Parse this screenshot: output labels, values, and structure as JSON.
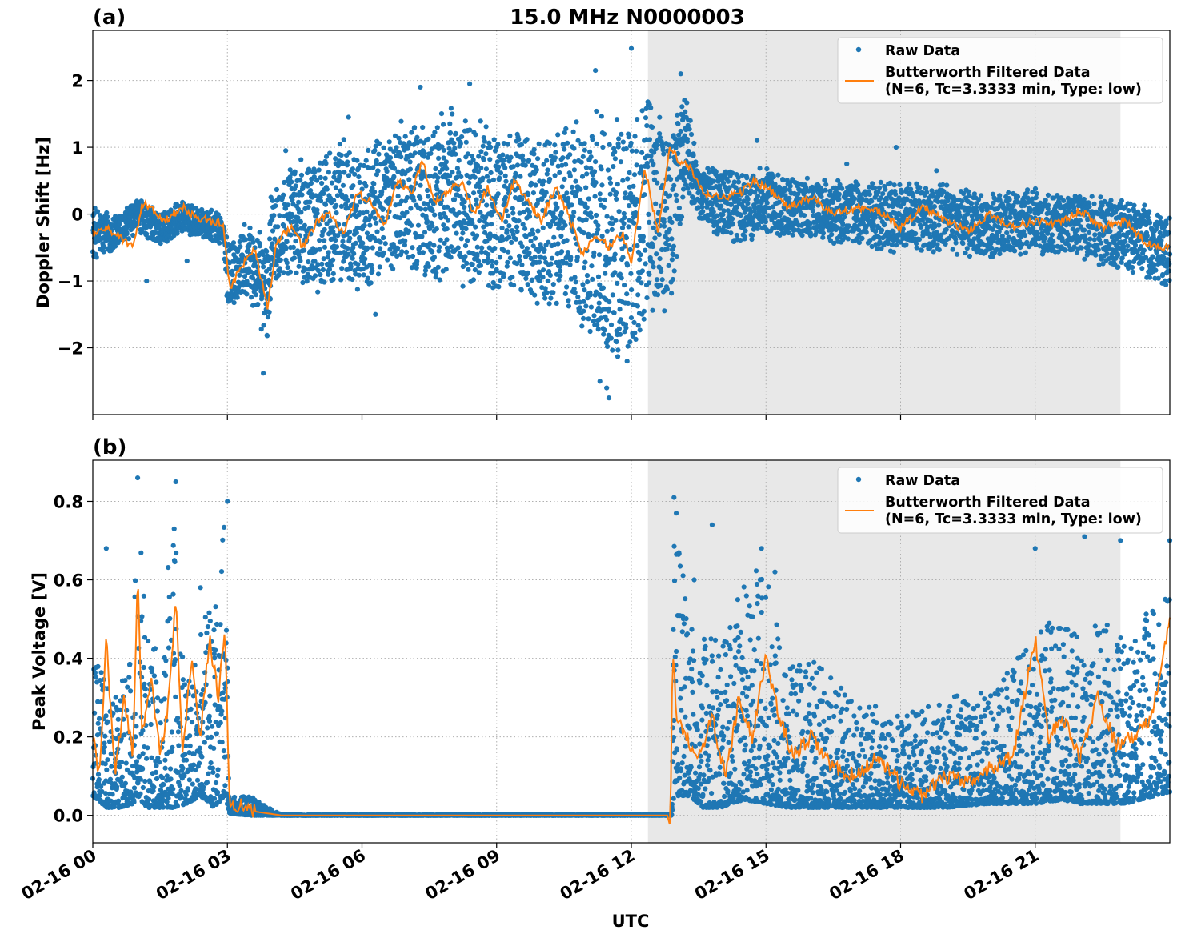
{
  "figure_title": "15.0 MHz N0000003",
  "xlabel": "UTC",
  "colors": {
    "raw": "#1f77b4",
    "filtered": "#ff7f0e",
    "shade": "#e8e8e8",
    "grid": "#b0b0b0"
  },
  "chart_data": [
    {
      "type": "scatter",
      "panel_label": "(a)",
      "title": "15.0 MHz N0000003",
      "xlabel": "",
      "ylabel": "Doppler Shift [Hz]",
      "x_unit": "hours after 02-16 00:00 UTC",
      "xlim": [
        0,
        24
      ],
      "ylim": [
        -3.0,
        2.75
      ],
      "yticks": [
        -2,
        -1,
        0,
        1,
        2
      ],
      "ytick_labels": [
        "−2",
        "−1",
        "0",
        "1",
        "2"
      ],
      "xticks": [
        0,
        3,
        6,
        9,
        12,
        15,
        18,
        21
      ],
      "grid": true,
      "shaded_region": [
        12.37,
        22.9
      ],
      "legend": {
        "placement": "top-right",
        "entries": [
          "Raw Data",
          "Butterworth Filtered Data",
          "(N=6, Tc=3.3333 min, Type: low)"
        ]
      },
      "series": [
        {
          "name": "Raw Data",
          "style": "dots",
          "envelope": {
            "x": [
              0,
              0.5,
              1,
              1.5,
              2,
              2.5,
              2.9,
              3.0,
              3.5,
              3.9,
              4.0,
              4.5,
              5.0,
              5.5,
              6.0,
              6.5,
              7.0,
              7.5,
              8.0,
              8.5,
              9.0,
              9.5,
              10.0,
              10.5,
              11.0,
              11.5,
              12.0,
              12.4,
              12.9,
              13.2,
              13.5,
              14.0,
              14.5,
              15.0,
              15.5,
              16.0,
              17.0,
              18.0,
              19.0,
              20.0,
              21.0,
              22.0,
              23.0,
              24.0
            ],
            "upper": [
              0.15,
              0.0,
              0.25,
              0.05,
              0.2,
              0.1,
              0.0,
              -0.3,
              -0.1,
              -0.4,
              0.6,
              0.8,
              1.0,
              1.2,
              1.0,
              1.3,
              1.5,
              1.4,
              1.7,
              1.5,
              1.3,
              1.4,
              1.2,
              1.4,
              1.6,
              1.5,
              1.7,
              1.8,
              1.4,
              1.9,
              0.7,
              0.8,
              0.6,
              0.75,
              0.6,
              0.55,
              0.5,
              0.5,
              0.45,
              0.35,
              0.4,
              0.35,
              0.25,
              0.1
            ],
            "lower": [
              -0.7,
              -0.6,
              -0.3,
              -0.5,
              -0.3,
              -0.4,
              -0.5,
              -1.5,
              -1.3,
              -2.0,
              -1.0,
              -1.1,
              -1.2,
              -1.0,
              -1.2,
              -1.0,
              -0.8,
              -1.2,
              -1.0,
              -1.2,
              -1.3,
              -1.2,
              -1.7,
              -1.5,
              -2.0,
              -2.5,
              -2.3,
              -1.6,
              -1.5,
              0.1,
              -0.1,
              -0.4,
              -0.5,
              -0.3,
              -0.4,
              -0.4,
              -0.5,
              -0.6,
              -0.6,
              -0.7,
              -0.6,
              -0.7,
              -0.9,
              -1.2
            ]
          },
          "outliers": [
            [
              12.0,
              2.48
            ],
            [
              11.2,
              2.15
            ],
            [
              13.1,
              2.1
            ],
            [
              11.5,
              -2.75
            ],
            [
              11.45,
              -2.6
            ],
            [
              11.3,
              -2.5
            ],
            [
              3.8,
              -2.38
            ],
            [
              8.4,
              1.95
            ],
            [
              7.3,
              1.9
            ],
            [
              4.3,
              0.95
            ],
            [
              5.7,
              1.45
            ],
            [
              14.8,
              1.1
            ],
            [
              17.9,
              1.0
            ],
            [
              16.8,
              0.75
            ],
            [
              18.8,
              0.65
            ],
            [
              6.3,
              -1.5
            ],
            [
              2.1,
              -0.7
            ],
            [
              1.2,
              -1.0
            ]
          ]
        },
        {
          "name": "Butterworth Filtered Data",
          "style": "line",
          "x": [
            0,
            0.3,
            0.6,
            0.9,
            1.1,
            1.3,
            1.6,
            2.0,
            2.3,
            2.6,
            2.9,
            3.05,
            3.3,
            3.6,
            3.9,
            4.1,
            4.4,
            4.7,
            5.0,
            5.3,
            5.6,
            5.9,
            6.2,
            6.5,
            6.8,
            7.1,
            7.35,
            7.6,
            7.9,
            8.2,
            8.5,
            8.8,
            9.1,
            9.4,
            9.7,
            10.0,
            10.3,
            10.6,
            10.9,
            11.2,
            11.5,
            11.8,
            12.0,
            12.3,
            12.6,
            12.85,
            13.05,
            13.3,
            13.6,
            14.0,
            14.4,
            14.75,
            15.1,
            15.5,
            16.0,
            16.5,
            17.0,
            17.5,
            18.0,
            18.5,
            19.0,
            19.5,
            20.0,
            20.5,
            21.0,
            21.5,
            22.0,
            22.5,
            23.0,
            23.5,
            24.0
          ],
          "y": [
            -0.3,
            -0.2,
            -0.35,
            -0.5,
            0.15,
            0.1,
            -0.1,
            0.1,
            -0.05,
            -0.1,
            -0.15,
            -1.1,
            -0.8,
            -0.5,
            -1.4,
            -0.4,
            -0.2,
            -0.5,
            -0.1,
            0.0,
            -0.3,
            0.3,
            0.2,
            -0.2,
            0.5,
            0.3,
            0.8,
            0.2,
            0.3,
            0.5,
            0.0,
            0.4,
            -0.1,
            0.5,
            0.2,
            -0.1,
            0.4,
            0.0,
            -0.6,
            -0.3,
            -0.5,
            -0.3,
            -0.7,
            0.7,
            -0.3,
            1.0,
            0.8,
            0.7,
            0.3,
            0.25,
            0.3,
            0.5,
            0.35,
            0.1,
            0.25,
            0.0,
            0.1,
            0.05,
            -0.2,
            0.1,
            -0.1,
            -0.25,
            0.0,
            -0.2,
            -0.1,
            -0.15,
            0.05,
            -0.2,
            -0.1,
            -0.45,
            -0.5
          ]
        }
      ]
    },
    {
      "type": "scatter",
      "panel_label": "(b)",
      "xlabel": "UTC",
      "ylabel": "Peak Voltage [V]",
      "x_unit": "hours after 02-16 00:00 UTC",
      "xlim": [
        0,
        24
      ],
      "ylim": [
        -0.07,
        0.905
      ],
      "yticks": [
        0.0,
        0.2,
        0.4,
        0.6,
        0.8
      ],
      "ytick_labels": [
        "0.0",
        "0.2",
        "0.4",
        "0.6",
        "0.8"
      ],
      "xticks": [
        0,
        3,
        6,
        9,
        12,
        15,
        18,
        21
      ],
      "xtick_labels": [
        "02-16 00",
        "02-16 03",
        "02-16 06",
        "02-16 09",
        "02-16 12",
        "02-16 15",
        "02-16 18",
        "02-16 21"
      ],
      "grid": true,
      "shaded_region": [
        12.37,
        22.9
      ],
      "legend": {
        "placement": "top-right",
        "entries": [
          "Raw Data",
          "Butterworth Filtered Data",
          "(N=6, Tc=3.3333 min, Type: low)"
        ]
      },
      "series": [
        {
          "name": "Raw Data",
          "style": "dots",
          "envelope": {
            "x": [
              0,
              0.3,
              0.6,
              0.9,
              1.0,
              1.2,
              1.5,
              1.8,
              2.1,
              2.4,
              2.7,
              2.95,
              3.05,
              3.5,
              3.9,
              4.2,
              12.9,
              12.95,
              13.3,
              13.6,
              14.0,
              14.5,
              15.0,
              15.5,
              16.0,
              17.0,
              18.0,
              19.0,
              20.0,
              21.0,
              21.6,
              22.0,
              22.5,
              23.0,
              24.0
            ],
            "upper": [
              0.4,
              0.35,
              0.32,
              0.45,
              0.85,
              0.45,
              0.42,
              0.8,
              0.35,
              0.55,
              0.5,
              0.8,
              0.05,
              0.05,
              0.02,
              0.002,
              0.002,
              0.8,
              0.5,
              0.45,
              0.45,
              0.6,
              0.65,
              0.4,
              0.4,
              0.3,
              0.25,
              0.3,
              0.32,
              0.45,
              0.55,
              0.45,
              0.5,
              0.45,
              0.6
            ],
            "lower": [
              0.05,
              0.02,
              0.02,
              0.03,
              0.05,
              0.02,
              0.02,
              0.02,
              0.03,
              0.05,
              0.02,
              0.05,
              0.005,
              0.0,
              0.0,
              0.0,
              0.0,
              0.05,
              0.05,
              0.02,
              0.02,
              0.04,
              0.03,
              0.02,
              0.02,
              0.02,
              0.02,
              0.02,
              0.03,
              0.03,
              0.04,
              0.03,
              0.03,
              0.03,
              0.06
            ]
          },
          "outliers": [
            [
              1.0,
              0.86
            ],
            [
              1.85,
              0.85
            ],
            [
              3.0,
              0.8
            ],
            [
              12.95,
              0.81
            ],
            [
              13.0,
              0.77
            ],
            [
              13.8,
              0.74
            ],
            [
              14.9,
              0.68
            ],
            [
              15.2,
              0.62
            ],
            [
              21.0,
              0.68
            ],
            [
              22.1,
              0.71
            ],
            [
              22.9,
              0.7
            ],
            [
              0.3,
              0.68
            ],
            [
              13.4,
              0.6
            ],
            [
              2.4,
              0.58
            ],
            [
              24.0,
              0.7
            ]
          ]
        },
        {
          "name": "Butterworth Filtered Data",
          "style": "line",
          "x": [
            0,
            0.15,
            0.3,
            0.5,
            0.7,
            0.9,
            1.0,
            1.1,
            1.3,
            1.5,
            1.7,
            1.85,
            2.0,
            2.2,
            2.4,
            2.6,
            2.8,
            2.95,
            3.05,
            3.3,
            3.6,
            3.9,
            4.2,
            6.0,
            9.0,
            12.0,
            12.8,
            12.87,
            12.92,
            13.0,
            13.2,
            13.5,
            13.8,
            14.1,
            14.4,
            14.7,
            15.0,
            15.3,
            15.6,
            16.0,
            16.5,
            17.0,
            17.5,
            18.0,
            18.5,
            19.0,
            19.5,
            20.0,
            20.5,
            21.0,
            21.3,
            21.6,
            22.0,
            22.4,
            22.8,
            23.2,
            23.6,
            24.0
          ],
          "y": [
            0.2,
            0.1,
            0.45,
            0.1,
            0.3,
            0.15,
            0.62,
            0.2,
            0.35,
            0.15,
            0.3,
            0.56,
            0.15,
            0.4,
            0.2,
            0.45,
            0.3,
            0.48,
            0.02,
            0.03,
            0.01,
            0.005,
            0.0,
            0.0,
            0.0,
            0.0,
            0.0,
            -0.03,
            0.45,
            0.25,
            0.2,
            0.15,
            0.25,
            0.1,
            0.3,
            0.2,
            0.4,
            0.25,
            0.15,
            0.2,
            0.12,
            0.1,
            0.15,
            0.08,
            0.05,
            0.1,
            0.08,
            0.12,
            0.15,
            0.45,
            0.2,
            0.25,
            0.15,
            0.3,
            0.18,
            0.2,
            0.25,
            0.5
          ]
        }
      ]
    }
  ]
}
